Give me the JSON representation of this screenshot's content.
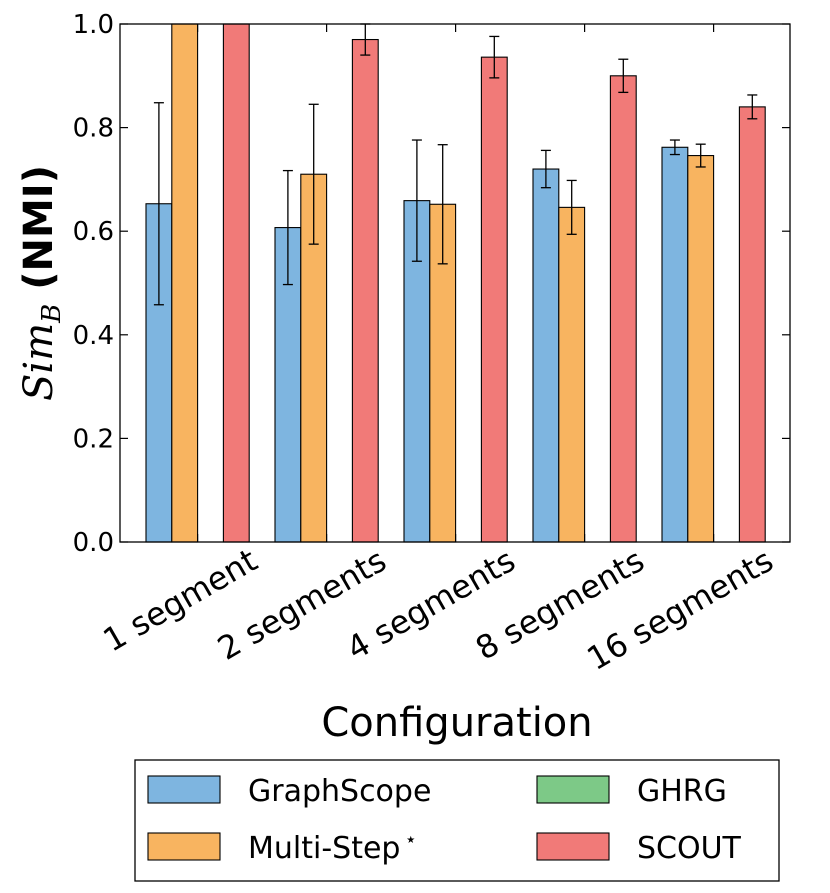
{
  "chart_data": {
    "type": "bar",
    "title": "",
    "xlabel": "Configuration",
    "ylabel_math": "Sim",
    "ylabel_subscript": "B",
    "ylabel_suffix": "(NMI)",
    "ylim": [
      0.0,
      1.0
    ],
    "yticks": [
      "0.0",
      "0.2",
      "0.4",
      "0.6",
      "0.8",
      "1.0"
    ],
    "categories": [
      "1 segment",
      "2 segments",
      "4 segments",
      "8 segments",
      "16 segments"
    ],
    "series": [
      {
        "name": "GraphScope",
        "color": "#7eb5e0",
        "values": [
          0.653,
          0.607,
          0.659,
          0.72,
          0.762
        ],
        "errors": [
          0.195,
          0.11,
          0.117,
          0.036,
          0.014
        ]
      },
      {
        "name": "Multi-Step",
        "name_superscript": "⋆",
        "color": "#f8b460",
        "values": [
          1.0,
          0.71,
          0.652,
          0.646,
          0.746
        ],
        "errors": [
          0.0,
          0.135,
          0.115,
          0.052,
          0.022
        ]
      },
      {
        "name": "GHRG",
        "color": "#7dc987",
        "values": [
          0.0,
          0.0,
          0.0,
          0.0,
          0.0
        ],
        "errors": [
          0,
          0,
          0,
          0,
          0
        ]
      },
      {
        "name": "SCOUT",
        "color": "#f17a78",
        "values": [
          1.0,
          0.97,
          0.936,
          0.9,
          0.84
        ],
        "errors": [
          0.0,
          0.03,
          0.04,
          0.032,
          0.023
        ]
      }
    ],
    "legend_position": "below"
  }
}
